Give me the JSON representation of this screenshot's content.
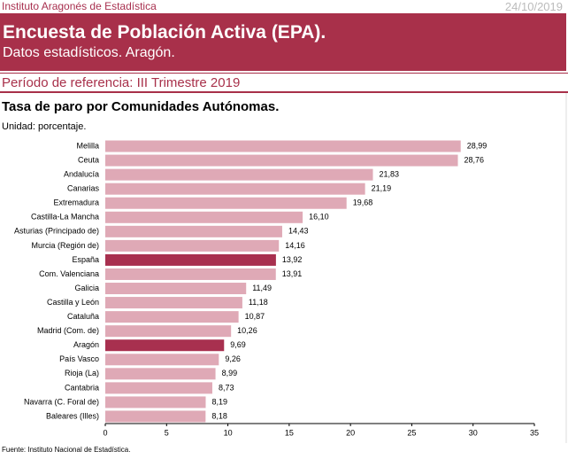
{
  "header": {
    "institute": "Instituto Aragonés de Estadística",
    "date": "24/10/2019",
    "title": "Encuesta de Población Activa (EPA).",
    "subtitle": "Datos estadísticos. Aragón.",
    "period": "Período de referencia: III Trimestre 2019"
  },
  "chart_data": {
    "type": "hbar",
    "title": "Tasa de paro por Comunidades Autónomas.",
    "unit": "Unidad: porcentaje.",
    "source": "Fuente: Instituto Nacional de Estadística.",
    "categories": [
      "Melilla",
      "Ceuta",
      "Andalucía",
      "Canarias",
      "Extremadura",
      "Castilla-La Mancha",
      "Asturias (Principado de)",
      "Murcia (Región de)",
      "España",
      "Com. Valenciana",
      "Galicia",
      "Castilla y León",
      "Cataluña",
      "Madrid (Com. de)",
      "Aragón",
      "País Vasco",
      "Rioja (La)",
      "Cantabria",
      "Navarra (C. Foral de)",
      "Baleares (Illes)"
    ],
    "values": [
      28.99,
      28.76,
      21.83,
      21.19,
      19.68,
      16.1,
      14.43,
      14.16,
      13.92,
      13.91,
      11.49,
      11.18,
      10.87,
      10.26,
      9.69,
      9.26,
      8.99,
      8.73,
      8.19,
      8.18
    ],
    "value_labels": [
      "28,99",
      "28,76",
      "21,83",
      "21,19",
      "19,68",
      "16,10",
      "14,43",
      "14,16",
      "13,92",
      "13,91",
      "11,49",
      "11,18",
      "10,87",
      "10,26",
      "9,69",
      "9,26",
      "8,99",
      "8,73",
      "8,19",
      "8,18"
    ],
    "colors": [
      "#dfa9b6",
      "#dfa9b6",
      "#dfa9b6",
      "#dfa9b6",
      "#dfa9b6",
      "#dfa9b6",
      "#dfa9b6",
      "#dfa9b6",
      "#a8304f",
      "#dfa9b6",
      "#dfa9b6",
      "#dfa9b6",
      "#dfa9b6",
      "#dfa9b6",
      "#a8304f",
      "#dfa9b6",
      "#dfa9b6",
      "#dfa9b6",
      "#dfa9b6",
      "#dfa9b6"
    ],
    "xlim": [
      0,
      35
    ],
    "xticks": [
      0,
      5,
      10,
      15,
      20,
      25,
      30,
      35
    ]
  }
}
